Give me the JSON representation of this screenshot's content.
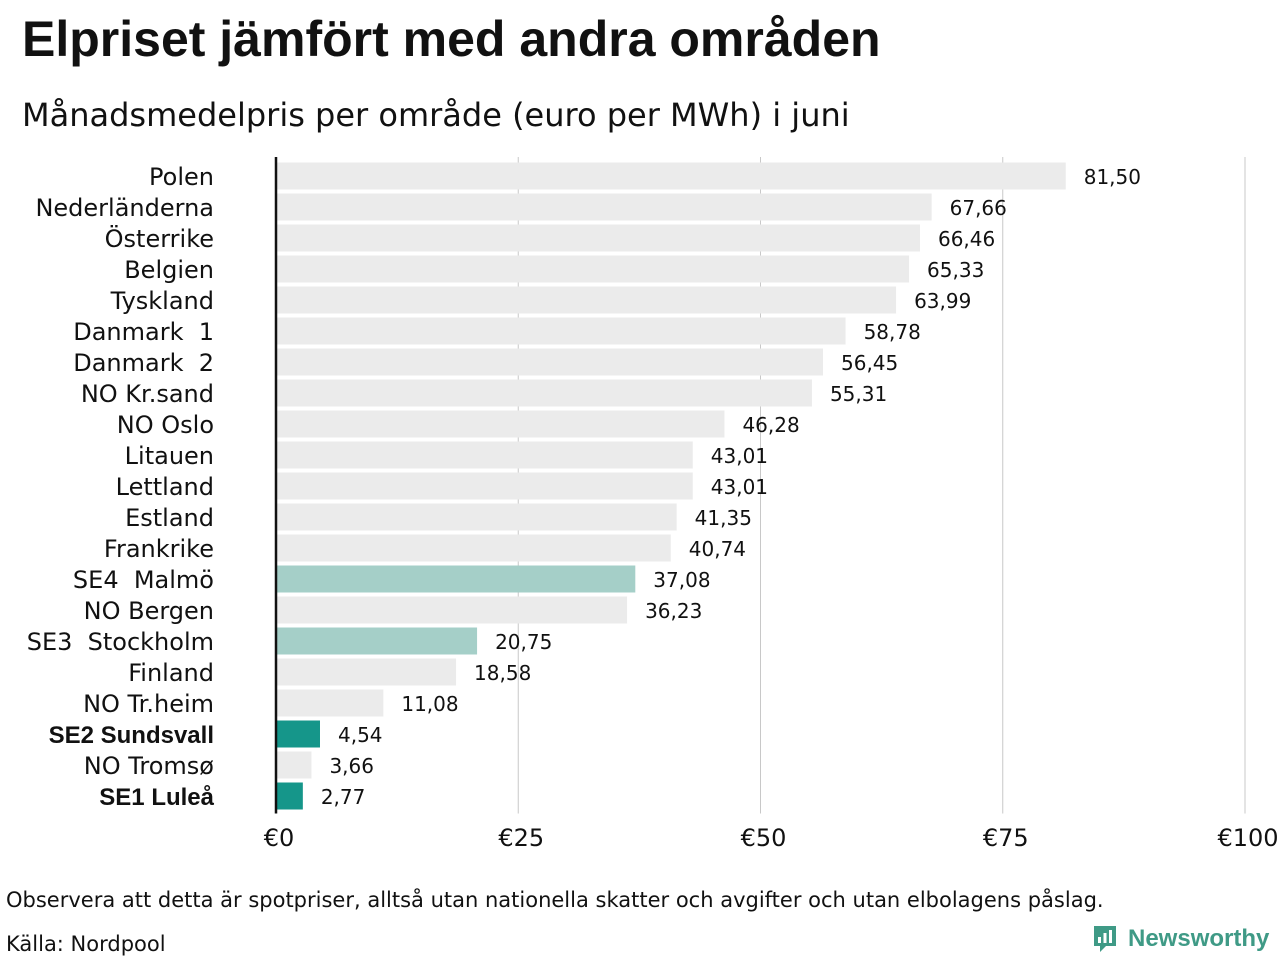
{
  "title": "Elpriset jämfört med andra områden",
  "subtitle": "Månadsmedelpris per område (euro per MWh) i juni",
  "footnote": "Observera att detta är spotpriser, alltså utan nationella skatter och avgifter och utan elbolagens påslag.",
  "source": "Källa: Nordpool",
  "brand": {
    "name": "Newsworthy",
    "icon": "newsworthy-logo-icon",
    "color": "#3f9a86"
  },
  "chart_data": {
    "type": "bar",
    "orientation": "horizontal",
    "title": "",
    "xlabel": "",
    "ylabel": "",
    "xlim": [
      0,
      100
    ],
    "x_ticks": [
      0,
      25,
      50,
      75,
      100
    ],
    "x_tick_labels": [
      "€0",
      "€25",
      "€50",
      "€75",
      "€100"
    ],
    "grid": "vertical",
    "colors": {
      "default": "#ebebeb",
      "highlight_light": "#a5cfc8",
      "highlight_dark": "#15968a",
      "grid": "#c8c8c8",
      "axis": "#111111"
    },
    "bars": [
      {
        "label": "Polen",
        "value": 81.5,
        "value_label": "81,50",
        "style": "default",
        "bold": false
      },
      {
        "label": "Nederländerna",
        "value": 67.66,
        "value_label": "67,66",
        "style": "default",
        "bold": false
      },
      {
        "label": "Österrike",
        "value": 66.46,
        "value_label": "66,46",
        "style": "default",
        "bold": false
      },
      {
        "label": "Belgien",
        "value": 65.33,
        "value_label": "65,33",
        "style": "default",
        "bold": false
      },
      {
        "label": "Tyskland",
        "value": 63.99,
        "value_label": "63,99",
        "style": "default",
        "bold": false
      },
      {
        "label": "Danmark  1",
        "value": 58.78,
        "value_label": "58,78",
        "style": "default",
        "bold": false
      },
      {
        "label": "Danmark  2",
        "value": 56.45,
        "value_label": "56,45",
        "style": "default",
        "bold": false
      },
      {
        "label": "NO Kr.sand",
        "value": 55.31,
        "value_label": "55,31",
        "style": "default",
        "bold": false
      },
      {
        "label": "NO Oslo",
        "value": 46.28,
        "value_label": "46,28",
        "style": "default",
        "bold": false
      },
      {
        "label": "Litauen",
        "value": 43.01,
        "value_label": "43,01",
        "style": "default",
        "bold": false
      },
      {
        "label": "Lettland",
        "value": 43.01,
        "value_label": "43,01",
        "style": "default",
        "bold": false
      },
      {
        "label": "Estland",
        "value": 41.35,
        "value_label": "41,35",
        "style": "default",
        "bold": false
      },
      {
        "label": "Frankrike",
        "value": 40.74,
        "value_label": "40,74",
        "style": "default",
        "bold": false
      },
      {
        "label": "SE4  Malmö",
        "value": 37.08,
        "value_label": "37,08",
        "style": "highlight_light",
        "bold": false
      },
      {
        "label": "NO Bergen",
        "value": 36.23,
        "value_label": "36,23",
        "style": "default",
        "bold": false
      },
      {
        "label": "SE3  Stockholm",
        "value": 20.75,
        "value_label": "20,75",
        "style": "highlight_light",
        "bold": false
      },
      {
        "label": "Finland",
        "value": 18.58,
        "value_label": "18,58",
        "style": "default",
        "bold": false
      },
      {
        "label": "NO Tr.heim",
        "value": 11.08,
        "value_label": "11,08",
        "style": "default",
        "bold": false
      },
      {
        "label": "SE2 Sundsvall",
        "value": 4.54,
        "value_label": "4,54",
        "style": "highlight_dark",
        "bold": true
      },
      {
        "label": "NO Tromsø",
        "value": 3.66,
        "value_label": "3,66",
        "style": "default",
        "bold": false
      },
      {
        "label": "SE1 Luleå",
        "value": 2.77,
        "value_label": "2,77",
        "style": "highlight_dark",
        "bold": true
      }
    ]
  }
}
